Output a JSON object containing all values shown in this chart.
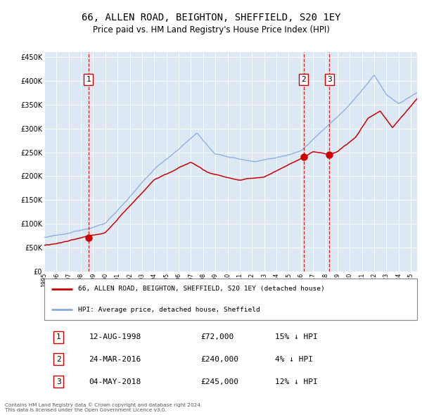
{
  "title": "66, ALLEN ROAD, BEIGHTON, SHEFFIELD, S20 1EY",
  "subtitle": "Price paid vs. HM Land Registry's House Price Index (HPI)",
  "bg_color": "#dce9f5",
  "grid_color": "#ffffff",
  "ylim": [
    0,
    460000
  ],
  "yticks": [
    0,
    50000,
    100000,
    150000,
    200000,
    250000,
    300000,
    350000,
    400000,
    450000
  ],
  "red_line_color": "#cc0000",
  "blue_line_color": "#88aadd",
  "vline_color": "#cc0000",
  "sales": [
    {
      "date_num": 1998.617,
      "price": 72000,
      "label": "1"
    },
    {
      "date_num": 2016.228,
      "price": 240000,
      "label": "2"
    },
    {
      "date_num": 2018.338,
      "price": 245000,
      "label": "3"
    }
  ],
  "legend_red_label": "66, ALLEN ROAD, BEIGHTON, SHEFFIELD, S20 1EY (detached house)",
  "legend_blue_label": "HPI: Average price, detached house, Sheffield",
  "table_rows": [
    {
      "num": "1",
      "date": "12-AUG-1998",
      "price": "£72,000",
      "pct": "15% ↓ HPI"
    },
    {
      "num": "2",
      "date": "24-MAR-2016",
      "price": "£240,000",
      "pct": "4% ↓ HPI"
    },
    {
      "num": "3",
      "date": "04-MAY-2018",
      "price": "£245,000",
      "pct": "12% ↓ HPI"
    }
  ],
  "footer": "Contains HM Land Registry data © Crown copyright and database right 2024.\nThis data is licensed under the Open Government Licence v3.0."
}
